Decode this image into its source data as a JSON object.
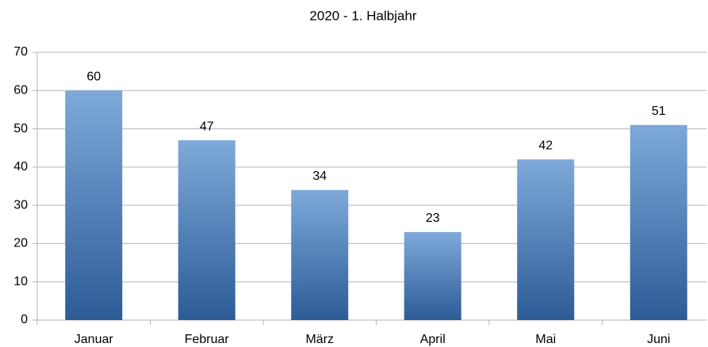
{
  "chart_data": {
    "type": "bar",
    "title": "2020 - 1. Halbjahr",
    "categories": [
      "Januar",
      "Februar",
      "März",
      "April",
      "Mai",
      "Juni"
    ],
    "values": [
      60,
      47,
      34,
      23,
      42,
      51
    ],
    "color": "#4a7cb8",
    "ylim": [
      0,
      70
    ],
    "yticks": [
      0,
      10,
      20,
      30,
      40,
      50,
      60,
      70
    ],
    "grid": true
  }
}
